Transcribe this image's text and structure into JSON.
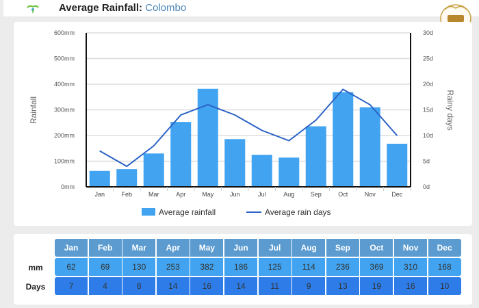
{
  "header": {
    "title_prefix": "Average Rainfall:",
    "city": "Colombo"
  },
  "colors": {
    "bar": "#42a4f0",
    "line": "#2b62c6",
    "table_header": "#5b9bd0",
    "table_mm": "#42a4f0",
    "table_days": "#2d7ce8"
  },
  "chart_data": {
    "type": "bar",
    "title": "Average Rainfall: Colombo",
    "categories": [
      "Jan",
      "Feb",
      "Mar",
      "Apr",
      "May",
      "Jun",
      "Jul",
      "Aug",
      "Sep",
      "Oct",
      "Nov",
      "Dec"
    ],
    "series": [
      {
        "name": "Average rainfall",
        "type": "bar",
        "axis": "left",
        "values": [
          62,
          69,
          130,
          253,
          382,
          186,
          125,
          114,
          236,
          369,
          310,
          168
        ]
      },
      {
        "name": "Average rain days",
        "type": "line",
        "axis": "right",
        "values": [
          7,
          4,
          8,
          14,
          16,
          14,
          11,
          9,
          13,
          19,
          16,
          10
        ]
      }
    ],
    "ylabel": "Rainfall",
    "y2label": "Rainy days",
    "ylim": [
      0,
      600
    ],
    "y2lim": [
      0,
      30
    ],
    "yticks": [
      "0mm",
      "100mm",
      "200mm",
      "300mm",
      "400mm",
      "500mm",
      "600mm"
    ],
    "y2ticks": [
      "0d",
      "5d",
      "10d",
      "15d",
      "20d",
      "25d",
      "30d"
    ],
    "grid": true,
    "legend": "bottom-center",
    "legend_entries": [
      "Average rainfall",
      "Average rain days"
    ]
  },
  "table": {
    "row_labels": {
      "mm": "mm",
      "days": "Days"
    },
    "months": [
      "Jan",
      "Feb",
      "Mar",
      "Apr",
      "May",
      "Jun",
      "Jul",
      "Aug",
      "Sep",
      "Oct",
      "Nov",
      "Dec"
    ],
    "mm": [
      "62",
      "69",
      "130",
      "253",
      "382",
      "186",
      "125",
      "114",
      "236",
      "369",
      "310",
      "168"
    ],
    "days": [
      "7",
      "4",
      "8",
      "14",
      "16",
      "14",
      "11",
      "9",
      "13",
      "19",
      "16",
      "10"
    ]
  }
}
